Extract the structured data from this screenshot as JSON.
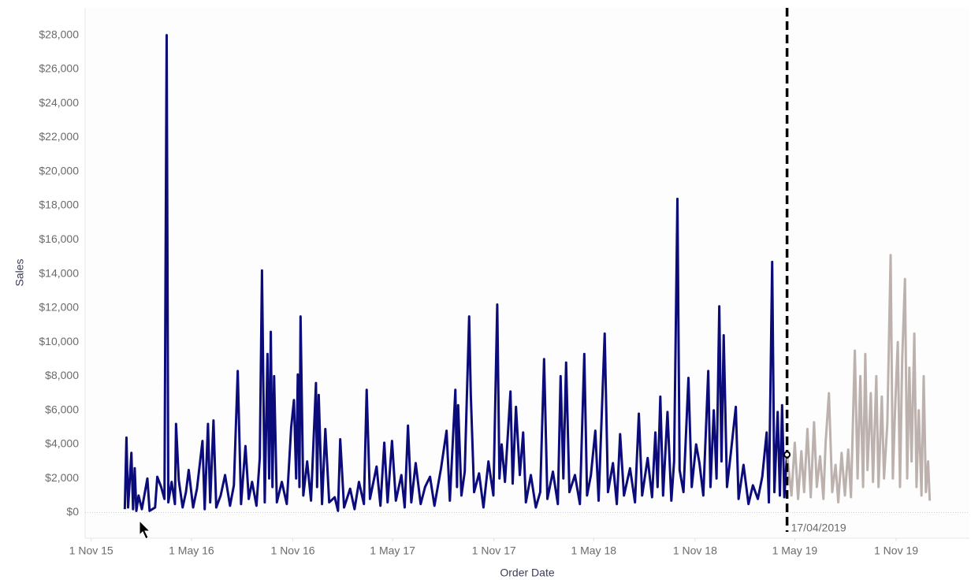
{
  "chart_data": {
    "type": "line",
    "x_label": "Order Date",
    "y_label": "Sales",
    "xlim": [
      "2015-10-21",
      "2020-03-13"
    ],
    "xticks": [
      {
        "value": "2015-11-01",
        "label": "1 Nov 15"
      },
      {
        "value": "2016-05-01",
        "label": "1 May 16"
      },
      {
        "value": "2016-11-01",
        "label": "1 Nov 16"
      },
      {
        "value": "2017-05-01",
        "label": "1 May 17"
      },
      {
        "value": "2017-11-01",
        "label": "1 Nov 17"
      },
      {
        "value": "2018-05-01",
        "label": "1 May 18"
      },
      {
        "value": "2018-11-01",
        "label": "1 Nov 18"
      },
      {
        "value": "2019-05-01",
        "label": "1 May 19"
      },
      {
        "value": "2019-11-01",
        "label": "1 Nov 19"
      }
    ],
    "ylim": [
      -1500,
      29600
    ],
    "yticks": [
      {
        "value": 0,
        "label": "$0"
      },
      {
        "value": 2000,
        "label": "$2,000"
      },
      {
        "value": 4000,
        "label": "$4,000"
      },
      {
        "value": 6000,
        "label": "$6,000"
      },
      {
        "value": 8000,
        "label": "$8,000"
      },
      {
        "value": 10000,
        "label": "$10,000"
      },
      {
        "value": 12000,
        "label": "$12,000"
      },
      {
        "value": 14000,
        "label": "$14,000"
      },
      {
        "value": 16000,
        "label": "$16,000"
      },
      {
        "value": 18000,
        "label": "$18,000"
      },
      {
        "value": 20000,
        "label": "$20,000"
      },
      {
        "value": 22000,
        "label": "$22,000"
      },
      {
        "value": 24000,
        "label": "$24,000"
      },
      {
        "value": 26000,
        "label": "$26,000"
      },
      {
        "value": 28000,
        "label": "$28,000"
      }
    ],
    "grid": false,
    "reference_line": {
      "value": "2019-04-17",
      "label": "17/04/2019",
      "color": "#000000"
    },
    "series": [
      {
        "color": "#0b0b7a",
        "x": [
          "2016-01-01",
          "2016-01-04",
          "2016-01-07",
          "2016-01-13",
          "2016-01-16",
          "2016-01-19",
          "2016-01-22",
          "2016-01-26",
          "2016-02-01",
          "2016-02-11",
          "2016-02-15",
          "2016-02-25",
          "2016-02-29",
          "2016-03-07",
          "2016-03-13",
          "2016-03-17",
          "2016-03-20",
          "2016-03-26",
          "2016-04-01",
          "2016-04-03",
          "2016-04-08",
          "2016-04-15",
          "2016-04-21",
          "2016-04-26",
          "2016-05-04",
          "2016-05-11",
          "2016-05-21",
          "2016-05-25",
          "2016-05-31",
          "2016-06-04",
          "2016-06-10",
          "2016-06-15",
          "2016-06-23",
          "2016-07-01",
          "2016-07-10",
          "2016-07-17",
          "2016-07-24",
          "2016-07-30",
          "2016-08-07",
          "2016-08-13",
          "2016-08-19",
          "2016-08-27",
          "2016-09-02",
          "2016-09-06",
          "2016-09-11",
          "2016-09-16",
          "2016-09-19",
          "2016-09-22",
          "2016-09-25",
          "2016-09-28",
          "2016-10-03",
          "2016-10-12",
          "2016-10-21",
          "2016-10-29",
          "2016-11-03",
          "2016-11-07",
          "2016-11-10",
          "2016-11-13",
          "2016-11-15",
          "2016-11-20",
          "2016-11-27",
          "2016-12-04",
          "2016-12-13",
          "2016-12-15",
          "2016-12-18",
          "2016-12-24",
          "2016-12-30",
          "2017-01-06",
          "2017-01-16",
          "2017-01-22",
          "2017-01-26",
          "2017-02-02",
          "2017-02-13",
          "2017-02-21",
          "2017-03-01",
          "2017-03-10",
          "2017-03-15",
          "2017-03-21",
          "2017-04-02",
          "2017-04-09",
          "2017-04-16",
          "2017-04-22",
          "2017-04-30",
          "2017-05-07",
          "2017-05-17",
          "2017-05-23",
          "2017-05-29",
          "2017-06-04",
          "2017-06-12",
          "2017-06-21",
          "2017-06-29",
          "2017-07-08",
          "2017-07-16",
          "2017-07-28",
          "2017-08-07",
          "2017-08-13",
          "2017-08-23",
          "2017-08-26",
          "2017-08-28",
          "2017-09-03",
          "2017-09-09",
          "2017-09-17",
          "2017-09-20",
          "2017-09-26",
          "2017-10-05",
          "2017-10-13",
          "2017-10-22",
          "2017-10-31",
          "2017-11-07",
          "2017-11-11",
          "2017-11-15",
          "2017-11-21",
          "2017-12-01",
          "2017-12-05",
          "2017-12-11",
          "2017-12-18",
          "2017-12-24",
          "2017-12-29",
          "2018-01-07",
          "2018-01-16",
          "2018-01-24",
          "2018-01-31",
          "2018-02-06",
          "2018-02-16",
          "2018-02-25",
          "2018-03-02",
          "2018-03-07",
          "2018-03-12",
          "2018-03-18",
          "2018-03-28",
          "2018-04-06",
          "2018-04-14",
          "2018-04-19",
          "2018-04-26",
          "2018-05-04",
          "2018-05-10",
          "2018-05-21",
          "2018-05-27",
          "2018-06-05",
          "2018-06-12",
          "2018-06-18",
          "2018-06-25",
          "2018-07-06",
          "2018-07-15",
          "2018-07-22",
          "2018-07-28",
          "2018-08-07",
          "2018-08-15",
          "2018-08-21",
          "2018-08-25",
          "2018-08-30",
          "2018-09-04",
          "2018-09-12",
          "2018-09-19",
          "2018-09-24",
          "2018-09-30",
          "2018-10-04",
          "2018-10-11",
          "2018-10-20",
          "2018-10-26",
          "2018-11-03",
          "2018-11-09",
          "2018-11-16",
          "2018-11-25",
          "2018-11-29",
          "2018-12-05",
          "2018-12-10",
          "2018-12-15",
          "2018-12-19",
          "2018-12-23",
          "2018-12-29",
          "2019-01-05",
          "2019-01-14",
          "2019-01-19",
          "2019-01-28",
          "2019-02-06",
          "2019-02-14",
          "2019-02-23",
          "2019-03-03",
          "2019-03-11",
          "2019-03-15",
          "2019-03-21",
          "2019-03-25",
          "2019-03-31",
          "2019-04-04",
          "2019-04-08",
          "2019-04-12",
          "2019-04-17"
        ],
        "values": [
          200,
          4400,
          300,
          3500,
          200,
          2600,
          100,
          1000,
          200,
          2000,
          100,
          300,
          2100,
          1500,
          800,
          28000,
          600,
          1800,
          500,
          5200,
          1900,
          300,
          1200,
          2500,
          300,
          1400,
          4200,
          200,
          5200,
          600,
          5400,
          300,
          1000,
          2200,
          400,
          1600,
          8300,
          500,
          3900,
          800,
          1800,
          400,
          3200,
          14200,
          600,
          9300,
          2000,
          10600,
          1500,
          8000,
          600,
          1800,
          500,
          5000,
          6600,
          2000,
          8100,
          1500,
          11500,
          1000,
          3000,
          700,
          7600,
          1500,
          6900,
          500,
          4900,
          600,
          900,
          100,
          4300,
          300,
          1400,
          200,
          1800,
          500,
          7200,
          800,
          2700,
          400,
          4100,
          600,
          4200,
          700,
          2200,
          300,
          5100,
          600,
          2900,
          500,
          1500,
          2100,
          400,
          2600,
          4800,
          700,
          7200,
          1500,
          6300,
          1000,
          2400,
          11500,
          6900,
          1200,
          2300,
          300,
          3000,
          1000,
          12200,
          2000,
          4000,
          1800,
          7100,
          1700,
          6200,
          2200,
          4700,
          600,
          2200,
          300,
          1200,
          9000,
          800,
          2400,
          500,
          8000,
          2000,
          8800,
          1200,
          2200,
          500,
          9300,
          1000,
          2200,
          4800,
          700,
          10500,
          1200,
          2900,
          500,
          4600,
          1000,
          2600,
          600,
          5800,
          1000,
          3200,
          900,
          4700,
          1500,
          6800,
          1000,
          5900,
          700,
          3000,
          18400,
          2500,
          1200,
          7900,
          1500,
          4000,
          2900,
          1000,
          8300,
          1500,
          6000,
          2000,
          12100,
          3000,
          10400,
          1500,
          3500,
          6200,
          800,
          2800,
          500,
          1600,
          800,
          2100,
          4700,
          600,
          14700,
          1200,
          5900,
          1000,
          6300,
          900,
          3400
        ]
      },
      {
        "color": "#bcb1ad",
        "x": [
          "2019-04-17",
          "2019-04-25",
          "2019-05-01",
          "2019-05-07",
          "2019-05-13",
          "2019-05-18",
          "2019-05-24",
          "2019-05-30",
          "2019-06-05",
          "2019-06-10",
          "2019-06-16",
          "2019-06-22",
          "2019-06-26",
          "2019-07-02",
          "2019-07-08",
          "2019-07-14",
          "2019-07-19",
          "2019-07-25",
          "2019-07-31",
          "2019-08-06",
          "2019-08-11",
          "2019-08-18",
          "2019-08-23",
          "2019-08-28",
          "2019-09-02",
          "2019-09-06",
          "2019-09-10",
          "2019-09-16",
          "2019-09-20",
          "2019-09-26",
          "2019-09-30",
          "2019-10-06",
          "2019-10-10",
          "2019-10-16",
          "2019-10-22",
          "2019-10-26",
          "2019-10-30",
          "2019-11-04",
          "2019-11-08",
          "2019-11-12",
          "2019-11-17",
          "2019-11-21",
          "2019-11-25",
          "2019-11-29",
          "2019-12-04",
          "2019-12-08",
          "2019-12-12",
          "2019-12-17",
          "2019-12-21",
          "2019-12-25",
          "2019-12-29",
          "2020-01-01"
        ],
        "values": [
          3400,
          1000,
          4100,
          800,
          3600,
          1200,
          4900,
          900,
          5300,
          1500,
          3300,
          800,
          4100,
          7000,
          1200,
          2800,
          600,
          3500,
          1000,
          3700,
          900,
          9500,
          2000,
          8000,
          1500,
          9300,
          2500,
          7000,
          1800,
          8000,
          1500,
          6800,
          2000,
          5200,
          15100,
          2000,
          6000,
          10000,
          1500,
          9000,
          13700,
          2000,
          8500,
          3000,
          10500,
          1500,
          6000,
          1000,
          8000,
          1200,
          3000,
          700
        ]
      }
    ]
  }
}
